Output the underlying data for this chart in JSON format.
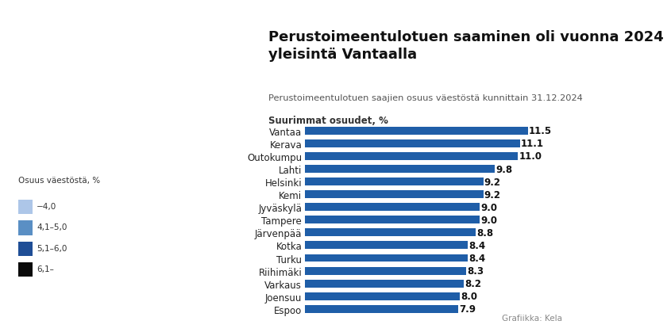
{
  "title": "Perustoimeentulotuen saaminen oli vuonna 2024\nyleisintä Vantaalla",
  "subtitle": "Perustoimeentulotuen saajien osuus väestöstä kunnittain 31.12.2024",
  "section_label": "Suurimmat osuudet, %",
  "categories": [
    "Vantaa",
    "Kerava",
    "Outokumpu",
    "Lahti",
    "Helsinki",
    "Kemi",
    "Jyväskylä",
    "Tampere",
    "Järvenpää",
    "Kotka",
    "Turku",
    "Riihimäki",
    "Varkaus",
    "Joensuu",
    "Espoo"
  ],
  "values": [
    11.5,
    11.1,
    11.0,
    9.8,
    9.2,
    9.2,
    9.0,
    9.0,
    8.8,
    8.4,
    8.4,
    8.3,
    8.2,
    8.0,
    7.9
  ],
  "bar_color": "#1f5ea8",
  "background_color": "#ffffff",
  "text_color": "#222222",
  "value_color": "#111111",
  "credit": "Grafiikka: Kela",
  "legend_title": "Osuus väestöstä, %",
  "legend_items": [
    {
      "label": "−4,0",
      "color": "#adc6e8"
    },
    {
      "label": "4,1–5,0",
      "color": "#5a8fc4"
    },
    {
      "label": "5,1–6,0",
      "color": "#1f4e96"
    },
    {
      "label": "6,1–",
      "color": "#0a0a0a"
    }
  ]
}
